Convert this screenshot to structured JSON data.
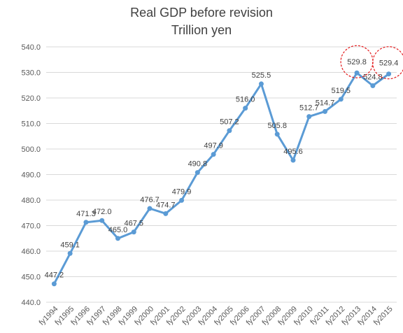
{
  "chart_data": {
    "type": "line",
    "title": "Real GDP before revision",
    "subtitle": "Trillion yen",
    "xlabel": "",
    "ylabel": "",
    "ylim": [
      440,
      540
    ],
    "yticks": [
      440,
      450,
      460,
      470,
      480,
      490,
      500,
      510,
      520,
      530,
      540
    ],
    "ytick_labels": [
      "440.0",
      "450.0",
      "460.0",
      "470.0",
      "480.0",
      "490.0",
      "500.0",
      "510.0",
      "520.0",
      "530.0",
      "540.0"
    ],
    "grid": true,
    "legend": "none",
    "line_color": "#5b9bd5",
    "highlight_color": "#e31a1c",
    "categories": [
      "fy1994",
      "fy1995",
      "fy1996",
      "fy1997",
      "fy1998",
      "fy1999",
      "fy2000",
      "fy2001",
      "fy2002",
      "fy2003",
      "fy2004",
      "fy2005",
      "fy2006",
      "fy2007",
      "fy2008",
      "fy2009",
      "fy2010",
      "fy2011",
      "fy2012",
      "fy2013",
      "fy2014",
      "fy2015"
    ],
    "values": [
      447.2,
      459.1,
      471.3,
      472.0,
      465.0,
      467.5,
      476.7,
      474.7,
      479.9,
      490.8,
      497.9,
      507.2,
      516.0,
      525.5,
      505.8,
      495.6,
      512.7,
      514.7,
      519.5,
      529.8,
      524.8,
      529.4
    ],
    "labels": [
      "447.2",
      "459.1",
      "471.3",
      "472.0",
      "465.0",
      "467.5",
      "476.7",
      "474.7",
      "479.9",
      "490.8",
      "497.9",
      "507.2",
      "516.0",
      "525.5",
      "505.8",
      "495.6",
      "512.7",
      "514.7",
      "519.5",
      "529.8",
      "524.8",
      "529.4"
    ],
    "highlighted": [
      "fy2013",
      "fy2015"
    ]
  }
}
